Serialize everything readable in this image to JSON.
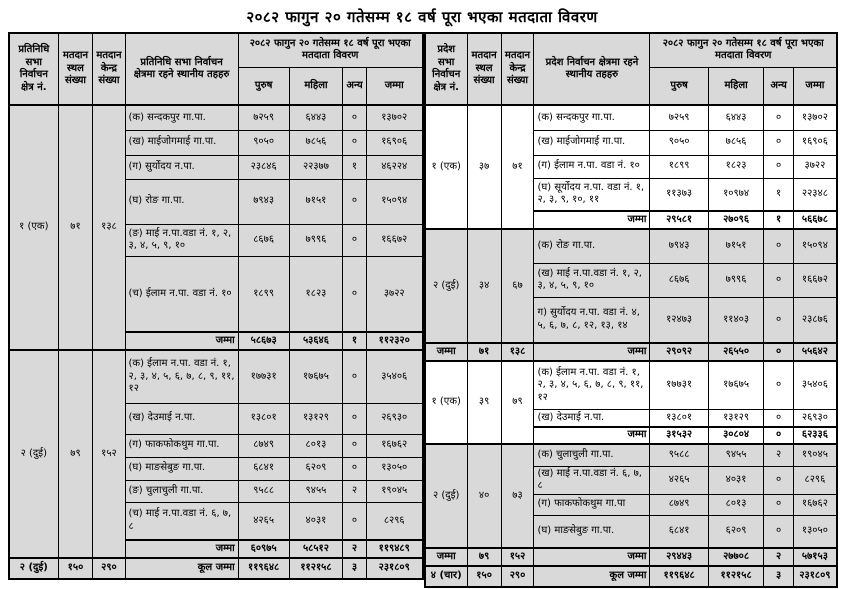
{
  "title": "२०८२ फागुन २० गतेसम्म १८ वर्ष पूरा भएका मतदाता विवरण",
  "colors": {
    "section_gray": "#d9d9d9",
    "section_white": "#ffffff",
    "border": "#000000"
  },
  "left_table": {
    "header": {
      "constituency": "प्रतिनिधि सभा निर्वाचन क्षेत्र नं.",
      "booth": "मतदान स्थल संख्या",
      "center": "मतदान केन्द्र संख्या",
      "localities": "प्रतिनिधि सभा निर्वाचन क्षेत्रमा रहने स्थानीय तहहरु",
      "group": "२०८२ फागुन २० गतेसम्म १८ वर्ष पूरा भएका मतदाता विवरण",
      "male": "पुरुष",
      "female": "महिला",
      "other": "अन्य",
      "total": "जम्मा"
    },
    "sections": [
      {
        "constituency": "१ (एक)",
        "booths": "७१",
        "centers": "१३८",
        "shade": "gray",
        "rows": [
          {
            "locality": "(क) सन्दकपुर गा.पा.",
            "male": "७२५९",
            "female": "६४४३",
            "other": "०",
            "total": "१३७०२"
          },
          {
            "locality": "(ख) माईजोगमाई गा.पा.",
            "male": "९०५०",
            "female": "७८५६",
            "other": "०",
            "total": "१६९०६"
          },
          {
            "locality": "(ग) सुर्योदय न.पा.",
            "male": "२३८४६",
            "female": "२२३७७",
            "other": "१",
            "total": "४६२२४"
          },
          {
            "locality": "(घ) रोङ गा.पा.",
            "male": "७९४३",
            "female": "७१५१",
            "other": "०",
            "total": "१५०९४"
          },
          {
            "locality": "(ङ) माई न.पा.वडा नं. १, २, ३, ४, ५, ९, १०",
            "male": "८६७६",
            "female": "७९९६",
            "other": "०",
            "total": "१६६७२"
          },
          {
            "locality": "(च) ईलाम न.पा. वडा नं. १०",
            "male": "१८९९",
            "female": "१८२३",
            "other": "०",
            "total": "३७२२"
          }
        ],
        "subtotal": {
          "label": "जम्मा",
          "male": "५८६७३",
          "female": "५३६४६",
          "other": "१",
          "total": "११२३२०"
        }
      },
      {
        "constituency": "२ (दुई)",
        "booths": "७९",
        "centers": "१५२",
        "shade": "gray",
        "rows": [
          {
            "locality": "(क) ईलाम न.पा. वडा नं. १, २, ३, ४, ५, ६, ७, ८, ९, ११, १२",
            "male": "१७७३१",
            "female": "१७६७५",
            "other": "०",
            "total": "३५४०६"
          },
          {
            "locality": "(ख) देउमाई न.पा.",
            "male": "१३८०१",
            "female": "१३१२९",
            "other": "०",
            "total": "२६९३०"
          },
          {
            "locality": "(ग) फाकफोकथुम गा.पा.",
            "male": "८७४९",
            "female": "८०१३",
            "other": "०",
            "total": "१६७६२"
          },
          {
            "locality": "(घ) माङसेबुङ गा.पा.",
            "male": "६८४१",
            "female": "६२०९",
            "other": "०",
            "total": "१३०५०"
          },
          {
            "locality": "(ङ) चुलाचुली गा.पा.",
            "male": "९५८८",
            "female": "९४५५",
            "other": "२",
            "total": "१९०४५"
          },
          {
            "locality": "(च) माई न.पा.वडा नं. ६, ७, ८",
            "male": "४२६५",
            "female": "४०३१",
            "other": "०",
            "total": "८२९६"
          }
        ],
        "subtotal": {
          "label": "जम्मा",
          "male": "६०९७५",
          "female": "५८५१२",
          "other": "२",
          "total": "११९४८९"
        }
      }
    ],
    "footer": {
      "constituency": "२ (दुई)",
      "booths": "१५०",
      "centers": "२९०",
      "label": "कूल जम्मा",
      "male": "११९६४८",
      "female": "११२१५८",
      "other": "३",
      "total": "२३१८०९"
    }
  },
  "right_table": {
    "header": {
      "constituency": "प्रदेश सभा निर्वाचन क्षेत्र नं.",
      "booth": "मतदान स्थल संख्या",
      "center": "मतदान केन्द्र संख्या",
      "localities": "प्रदेश निर्वाचन क्षेत्रमा रहने स्थानीय तहहरु",
      "group": "२०८२ फागुन २० गतेसम्म १८ वर्ष पूरा भएका मतदाता विवरण",
      "male": "पुरुष",
      "female": "महिला",
      "other": "अन्य",
      "total": "जम्मा"
    },
    "sections": [
      {
        "constituency": "१ (एक)",
        "booths": "३७",
        "centers": "७१",
        "shade": "white",
        "rows": [
          {
            "locality": "(क) सन्दकपुर गा.पा.",
            "male": "७२५९",
            "female": "६४४३",
            "other": "०",
            "total": "१३७०२"
          },
          {
            "locality": "(ख) माईजोगमाई गा.पा.",
            "male": "९०५०",
            "female": "७८५६",
            "other": "०",
            "total": "१६९०६"
          },
          {
            "locality": "(ग) ईलाम न.पा. वडा नं. १०",
            "male": "१८९९",
            "female": "१८२३",
            "other": "०",
            "total": "३७२२"
          },
          {
            "locality": "(घ) सूर्योदय न.पा. वडा नं. १, २, ३, ९, १०, ११",
            "male": "११३७३",
            "female": "१०९७४",
            "other": "१",
            "total": "२२३४८"
          }
        ],
        "subtotal": {
          "label": "जम्मा",
          "male": "२९५८१",
          "female": "२७०९६",
          "other": "१",
          "total": "५६६७८"
        }
      },
      {
        "constituency": "२ (दुई)",
        "booths": "३४",
        "centers": "६७",
        "shade": "gray",
        "rows": [
          {
            "locality": "(क) रोङ गा.पा.",
            "male": "७९४३",
            "female": "७१५१",
            "other": "०",
            "total": "१५०९४"
          },
          {
            "locality": "(ख) माई न.पा.वडा नं. १, २, ३, ४, ५, ९, १०",
            "male": "८६७६",
            "female": "७९९६",
            "other": "०",
            "total": "१६६७२"
          },
          {
            "locality": "ग) सुर्योदय न.पा. वडा नं. ४, ५, ६, ७, ८, १२, १३, १४",
            "male": "१२४७३",
            "female": "११४०३",
            "other": "०",
            "total": "२३८७६"
          }
        ],
        "block_subtotal": {
          "label": "जम्मा",
          "booths": "७१",
          "centers": "१३८",
          "total_label": "जम्मा",
          "male": "२९०९२",
          "female": "२६५५०",
          "other": "०",
          "total": "५५६४२"
        }
      },
      {
        "constituency": "१ (एक)",
        "booths": "३९",
        "centers": "७९",
        "shade": "white",
        "rows": [
          {
            "locality": "(क) ईलाम न.पा. वडा नं. १, २, ३, ४, ५, ६, ७, ८, ९, ११, १२",
            "male": "१७७३१",
            "female": "१७६७५",
            "other": "०",
            "total": "३५४०६"
          },
          {
            "locality": "(ख) देउमाई न.पा.",
            "male": "१३८०१",
            "female": "१३१२९",
            "other": "०",
            "total": "२६९३०"
          }
        ],
        "subtotal": {
          "label": "जम्मा",
          "male": "३१५३२",
          "female": "३०८०४",
          "other": "०",
          "total": "६२३३६"
        }
      },
      {
        "constituency": "२ (दुई)",
        "booths": "४०",
        "centers": "७३",
        "shade": "gray",
        "rows": [
          {
            "locality": "(क) चुलाचुली गा.पा.",
            "male": "९५८८",
            "female": "९४५५",
            "other": "२",
            "total": "१९०४५"
          },
          {
            "locality": "(ख) माई न.पा.वडा नं. ६, ७, ८",
            "male": "४२६५",
            "female": "४०३१",
            "other": "०",
            "total": "८२९६"
          },
          {
            "locality": "(ग) फाकफोकथुम गा.पा",
            "male": "८७४९",
            "female": "८०१३",
            "other": "०",
            "total": "१६७६२"
          },
          {
            "locality": "(घ) माङसेबुङ गा.पा.",
            "male": "६८४१",
            "female": "६२०९",
            "other": "०",
            "total": "१३०५०"
          }
        ],
        "block_subtotal": {
          "label": "जम्मा",
          "booths": "७९",
          "centers": "१५२",
          "total_label": "जम्मा",
          "male": "२९४४३",
          "female": "२७७०८",
          "other": "२",
          "total": "५७१५३"
        }
      }
    ],
    "footer": {
      "constituency": "४ (चार)",
      "booths": "१५०",
      "centers": "२९०",
      "label": "कूल जम्मा",
      "male": "११९६४८",
      "female": "११२१५८",
      "other": "३",
      "total": "२३१८०९"
    }
  }
}
